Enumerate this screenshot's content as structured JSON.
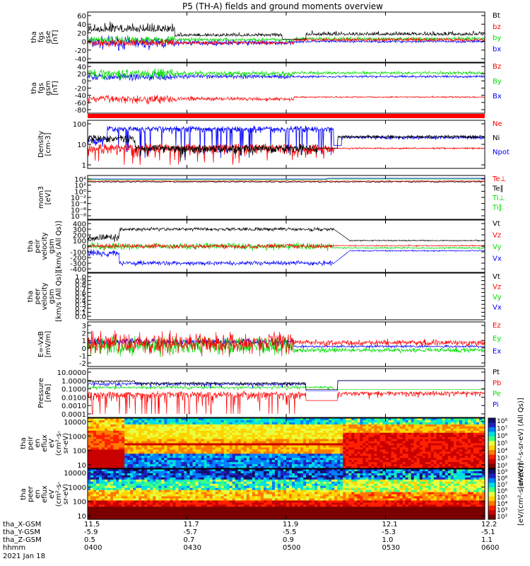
{
  "title": "P5 (TH-A) fields and ground moments overview",
  "colors": {
    "black": "#000000",
    "red": "#ff0000",
    "green": "#00dd00",
    "blue": "#0000ff"
  },
  "panels": [
    {
      "id": "fgs",
      "ylabel": [
        "tha",
        "fgs",
        "gse",
        "[nT]"
      ],
      "ticks": [
        "60",
        "40",
        "20",
        "0",
        "-20",
        "-40"
      ],
      "legend": [
        {
          "label": "Bt",
          "color": "black"
        },
        {
          "label": "bz",
          "color": "red"
        },
        {
          "label": "by",
          "color": "green"
        },
        {
          "label": "bx",
          "color": "blue"
        }
      ]
    },
    {
      "id": "fgs-gsm",
      "ylabel": [
        "tha",
        "fgs",
        "gsm",
        "[nT]"
      ],
      "ticks": [
        "40",
        "20",
        "0",
        "-20",
        "-40",
        "-60",
        "-80"
      ],
      "legend": [
        {
          "label": "Bz",
          "color": "red"
        },
        {
          "label": "By",
          "color": "green"
        },
        {
          "label": "Bx",
          "color": "blue"
        }
      ]
    },
    {
      "id": "density",
      "ylabel": [
        "Density",
        "[cm-3]"
      ],
      "ticks": [
        "100",
        "10",
        "1"
      ],
      "legend": [
        {
          "label": "Ne",
          "color": "red"
        },
        {
          "label": "Ni",
          "color": "black"
        },
        {
          "label": "Npot",
          "color": "blue"
        }
      ]
    },
    {
      "id": "temperature",
      "ylabel": [
        "mom3",
        "[eV]"
      ],
      "ticks": [
        "10⁴",
        "10²",
        "10⁰",
        "10⁻²",
        "10⁻⁴",
        "10⁻⁶",
        "10⁻⁸"
      ],
      "legend": [
        {
          "label": "Te⊥",
          "color": "red"
        },
        {
          "label": "Te∥",
          "color": "black"
        },
        {
          "label": "Ti⊥",
          "color": "green"
        },
        {
          "label": "Ti∥",
          "color": "green"
        }
      ]
    },
    {
      "id": "ion-velocity",
      "ylabel": [
        "tha",
        "peir",
        "velocity",
        "gsm",
        "[km/s (All Qs)]"
      ],
      "ticks": [
        "400",
        "300",
        "200",
        "100",
        "0",
        "-100",
        "-200",
        "-300",
        "-400"
      ],
      "legend": [
        {
          "label": "Vt",
          "color": "black"
        },
        {
          "label": "Vz",
          "color": "red"
        },
        {
          "label": "Vy",
          "color": "green"
        },
        {
          "label": "Vx",
          "color": "blue"
        }
      ]
    },
    {
      "id": "electron-velocity",
      "ylabel": [
        "tha",
        "peer",
        "velocity",
        "gsm",
        "[km/s (All Qs)]"
      ],
      "ticks": [
        "1.0",
        "0.9",
        "0.8",
        "0.7",
        "0.6",
        "0.5",
        "0.4",
        "0.3",
        "0.2",
        "0.1",
        "0.0"
      ],
      "legend": [
        {
          "label": "Vt",
          "color": "black"
        },
        {
          "label": "Vz",
          "color": "red"
        },
        {
          "label": "Vy",
          "color": "green"
        },
        {
          "label": "Vx",
          "color": "blue"
        }
      ]
    },
    {
      "id": "efield",
      "ylabel": [
        "E=-VxB",
        "[mV/m]"
      ],
      "ticks": [
        "3",
        "2",
        "1",
        "0",
        "-1",
        "-2"
      ],
      "legend": [
        {
          "label": "Ez",
          "color": "red"
        },
        {
          "label": "Ey",
          "color": "green"
        },
        {
          "label": "Ex",
          "color": "blue"
        }
      ]
    },
    {
      "id": "pressure",
      "ylabel": [
        "Pressure",
        "[nPa]"
      ],
      "ticks": [
        "10.0000",
        "1.0000",
        "0.1000",
        "0.0100",
        "0.0010",
        "0.0001"
      ],
      "legend": [
        {
          "label": "Pt",
          "color": "black"
        },
        {
          "label": "Pb",
          "color": "red"
        },
        {
          "label": "Pe",
          "color": "green"
        },
        {
          "label": "Pi",
          "color": "blue"
        }
      ]
    },
    {
      "id": "ion-spectrogram",
      "ylabel": [
        "tha",
        "peir",
        "en",
        "eflux",
        "eV",
        "(cm²-s-",
        "sr-eV)"
      ],
      "ticks": [
        "10000",
        "1000",
        "100",
        "10"
      ],
      "colorbar_ticks": [
        "10⁸",
        "10⁷",
        "10⁶",
        "10⁵",
        "10⁴",
        "10³",
        "10²"
      ],
      "colorbar_label": "[eV/(cm²-s-sr-eV) (All Qs)]"
    },
    {
      "id": "electron-spectrogram",
      "ylabel": [
        "tha",
        "peer",
        "en",
        "eflux",
        "eV",
        "(cm²-s-",
        "sr-eV)"
      ],
      "ticks": [
        "10000",
        "1000",
        "100",
        "10"
      ],
      "colorbar_ticks": [
        "10⁹",
        "10⁸",
        "10⁷",
        "10⁶",
        "10⁵",
        "10⁴",
        "10³",
        "10²"
      ],
      "colorbar_label": "[eV/(cm²-s-sr-eV)]"
    }
  ],
  "xaxis": {
    "row_labels": [
      "tha_X-GSM",
      "tha_Y-GSM",
      "tha_Z-GSM",
      "hhmm",
      "2021 Jan 18"
    ],
    "columns": [
      {
        "x": "11.5",
        "y": "-5.9",
        "z": "0.5",
        "hhmm": "0400"
      },
      {
        "x": "11.7",
        "y": "-5.7",
        "z": "0.7",
        "hhmm": "0430"
      },
      {
        "x": "11.9",
        "y": "-5.5",
        "z": "0.9",
        "hhmm": "0500"
      },
      {
        "x": "12.1",
        "y": "-5.3",
        "z": "1.0",
        "hhmm": "0530"
      },
      {
        "x": "12.2",
        "y": "-5.1",
        "z": "1.1",
        "hhmm": "0600"
      }
    ]
  },
  "chart_data": {
    "type": "line",
    "title": "P5 (TH-A) fields and ground moments overview",
    "x_range": [
      "0400",
      "0600"
    ],
    "series": [
      {
        "panel": "fgs",
        "name": "Bt",
        "level_before_0505": 15,
        "level_after_0515": 10
      },
      {
        "panel": "fgs-gsm",
        "name": "By",
        "level": 20
      },
      {
        "panel": "fgs-gsm",
        "name": "Bz",
        "level": -45
      },
      {
        "panel": "density",
        "name": "Npot",
        "level_before_0515": 150,
        "level_after_0515": 50
      },
      {
        "panel": "density",
        "name": "Ni",
        "level_before_0515": 10,
        "level_after_0515": 50
      },
      {
        "panel": "ion-velocity",
        "name": "Vt",
        "level_0410_0515": 300,
        "level_after_0520": 100
      },
      {
        "panel": "ion-velocity",
        "name": "Vx",
        "level_0410_0515": -300,
        "level_after_0520": -80
      },
      {
        "panel": "pressure",
        "name": "Pt",
        "level_before_0515": 0.5,
        "level_after_0515": 1.0
      }
    ]
  }
}
